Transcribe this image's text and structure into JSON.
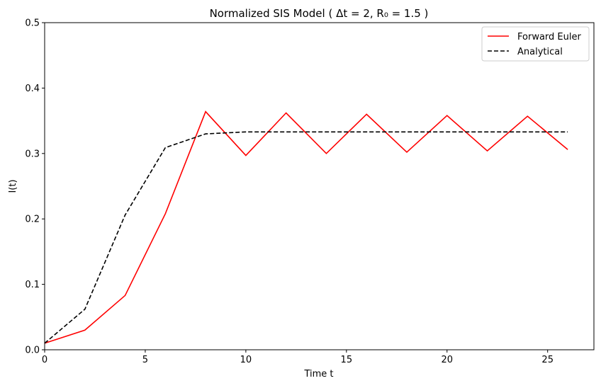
{
  "chart_data": {
    "type": "line",
    "title": "Normalized SIS Model ( Δt = 2, R₀ = 1.5 )",
    "xlabel": "Time t",
    "ylabel": "I(t)",
    "xlim": [
      0,
      27.3
    ],
    "ylim": [
      0,
      0.5
    ],
    "xticks": [
      0,
      5,
      10,
      15,
      20,
      25
    ],
    "yticks": [
      0.0,
      0.1,
      0.2,
      0.3,
      0.4,
      0.5
    ],
    "xtick_labels": [
      "0",
      "5",
      "10",
      "15",
      "20",
      "25"
    ],
    "ytick_labels": [
      "0.0",
      "0.1",
      "0.2",
      "0.3",
      "0.4",
      "0.5"
    ],
    "grid": false,
    "legend": "top-right",
    "x": [
      0,
      2,
      4,
      6,
      8,
      10,
      12,
      14,
      16,
      18,
      20,
      22,
      24,
      26
    ],
    "series": [
      {
        "name": "Forward Euler",
        "color": "#ff0000",
        "style": "solid",
        "values": [
          0.01,
          0.03,
          0.083,
          0.208,
          0.364,
          0.297,
          0.362,
          0.3,
          0.36,
          0.302,
          0.358,
          0.304,
          0.357,
          0.306
        ]
      },
      {
        "name": "Analytical",
        "color": "#000000",
        "style": "dashed",
        "values": [
          0.01,
          0.062,
          0.206,
          0.309,
          0.33,
          0.333,
          0.333,
          0.333,
          0.333,
          0.333,
          0.333,
          0.333,
          0.333,
          0.333
        ]
      }
    ]
  }
}
